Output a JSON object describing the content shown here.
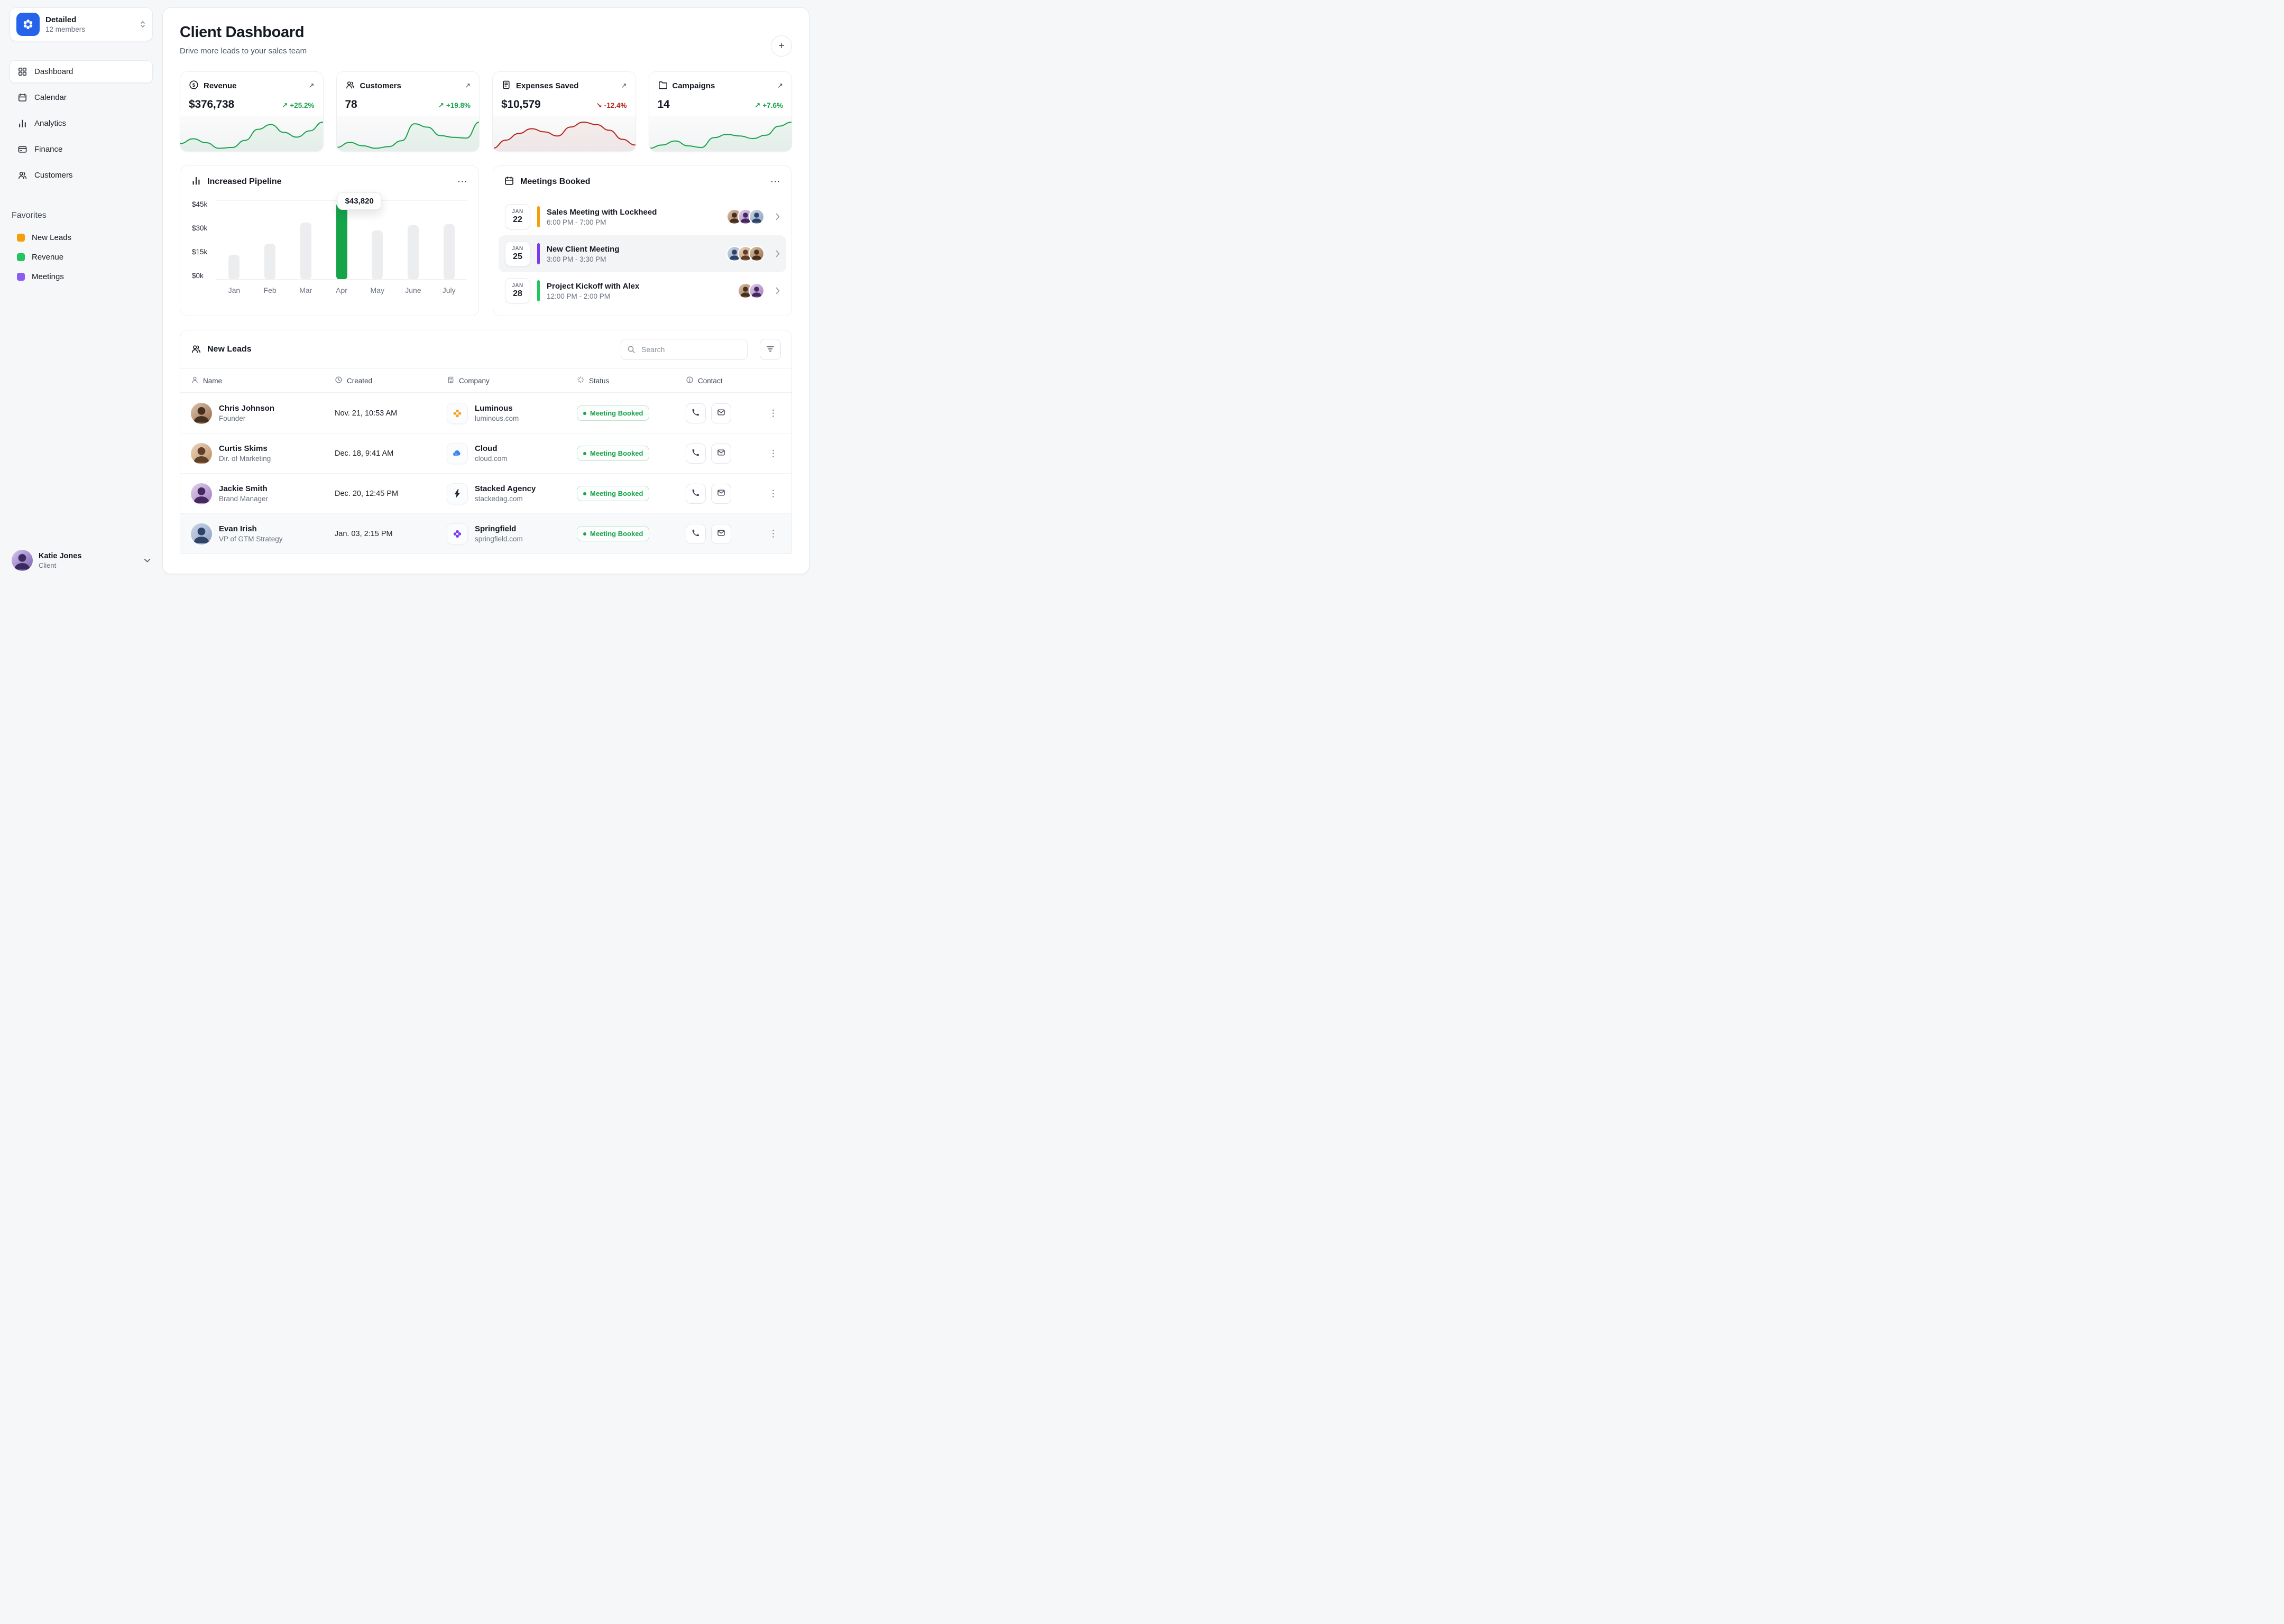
{
  "workspace": {
    "name": "Detailed",
    "members": "12 members"
  },
  "sidebar": {
    "items": [
      {
        "label": "Dashboard",
        "active": true
      },
      {
        "label": "Calendar"
      },
      {
        "label": "Analytics"
      },
      {
        "label": "Finance"
      },
      {
        "label": "Customers"
      }
    ],
    "favorites_title": "Favorites",
    "favorites": [
      {
        "label": "New Leads",
        "color": "#f59e0b"
      },
      {
        "label": "Revenue",
        "color": "#22c55e"
      },
      {
        "label": "Meetings",
        "color": "#8b5cf6"
      }
    ],
    "user": {
      "name": "Katie Jones",
      "role": "Client"
    }
  },
  "header": {
    "title": "Client Dashboard",
    "subtitle": "Drive more leads to your sales team"
  },
  "ui": {
    "plus_icon": "+",
    "more_icon": "⋯",
    "kebab_icon": "⋮",
    "link_arrow": "↗",
    "search_placeholder": "Search"
  },
  "stats": [
    {
      "label": "Revenue",
      "value": "$376,738",
      "delta": "+25.2%",
      "arrow": "↗",
      "direction": "up",
      "color": "#16a34a"
    },
    {
      "label": "Customers",
      "value": "78",
      "delta": "+19.8%",
      "arrow": "↗",
      "direction": "up",
      "color": "#16a34a"
    },
    {
      "label": "Expenses Saved",
      "value": "$10,579",
      "delta": "-12.4%",
      "arrow": "↘",
      "direction": "down",
      "color": "#b42318"
    },
    {
      "label": "Campaigns",
      "value": "14",
      "delta": "+7.6%",
      "arrow": "↗",
      "direction": "up",
      "color": "#16a34a"
    }
  ],
  "chart_data": [
    {
      "type": "bar",
      "title": "Increased Pipeline",
      "categories": [
        "Jan",
        "Feb",
        "Mar",
        "Apr",
        "May",
        "June",
        "July"
      ],
      "values": [
        14000,
        20500,
        32500,
        43820,
        28000,
        31000,
        31500
      ],
      "ylim": [
        0,
        45000
      ],
      "yticks": [
        "$45k",
        "$30k",
        "$15k",
        "$0k"
      ],
      "highlight_index": 3,
      "highlight_label": "$43,820",
      "bar_color": "#ebedef",
      "highlight_color": "#16a34a",
      "xlabel": "",
      "ylabel": "",
      "legend": "off",
      "grid": "minimal"
    },
    {
      "type": "line",
      "title": "Revenue trend sparkline",
      "values": [
        36,
        42,
        37,
        30,
        31,
        40,
        54,
        60,
        50,
        44,
        52,
        63
      ],
      "color": "#16a34a"
    },
    {
      "type": "line",
      "title": "Customers trend sparkline",
      "values": [
        30,
        36,
        32,
        29,
        31,
        38,
        58,
        54,
        44,
        42,
        41,
        60
      ],
      "color": "#16a34a"
    },
    {
      "type": "line",
      "title": "Expenses Saved trend sparkline",
      "values": [
        26,
        36,
        44,
        50,
        46,
        41,
        52,
        58,
        55,
        48,
        37,
        30
      ],
      "color": "#b42318"
    },
    {
      "type": "line",
      "title": "Campaigns trend sparkline",
      "values": [
        30,
        34,
        39,
        33,
        31,
        43,
        47,
        45,
        42,
        46,
        57,
        62
      ],
      "color": "#16a34a"
    }
  ],
  "meetings": {
    "title": "Meetings Booked",
    "items": [
      {
        "month": "JAN",
        "day": "22",
        "title": "Sales Meeting with Lockheed",
        "time": "6:00 PM - 7:00 PM",
        "color": "#f59e0b",
        "attendees": 3
      },
      {
        "month": "JAN",
        "day": "25",
        "title": "New Client Meeting",
        "time": "3:00 PM - 3:30 PM",
        "color": "#7c3aed",
        "attendees": 3
      },
      {
        "month": "JAN",
        "day": "28",
        "title": "Project Kickoff with Alex",
        "time": "12:00 PM - 2:00 PM",
        "color": "#22c55e",
        "attendees": 2
      }
    ]
  },
  "leads": {
    "title": "New Leads",
    "columns": [
      "Name",
      "Created",
      "Company",
      "Status",
      "Contact"
    ],
    "rows": [
      {
        "name": "Chris Johnson",
        "role": "Founder",
        "created": "Nov. 21, 10:53 AM",
        "company": "Luminous",
        "domain": "luminous.com",
        "company_icon": "flower-icon",
        "icon_color": "#f5a623",
        "status": "Meeting Booked"
      },
      {
        "name": "Curtis Skims",
        "role": "Dir. of Marketing",
        "created": "Dec. 18, 9:41 AM",
        "company": "Cloud",
        "domain": "cloud.com",
        "company_icon": "cloud-icon",
        "icon_color": "#3b82f6",
        "status": "Meeting Booked"
      },
      {
        "name": "Jackie Smith",
        "role": "Brand Manager",
        "created": "Dec. 20, 12:45 PM",
        "company": "Stacked Agency",
        "domain": "stackedag.com",
        "company_icon": "bolt-icon",
        "icon_color": "#23272e",
        "status": "Meeting Booked"
      },
      {
        "name": "Evan Irish",
        "role": "VP of GTM Strategy",
        "created": "Jan. 03, 2:15 PM",
        "company": "Springfield",
        "domain": "springfield.com",
        "company_icon": "flower-icon",
        "icon_color": "#7c3aed",
        "status": "Meeting Booked"
      }
    ]
  }
}
